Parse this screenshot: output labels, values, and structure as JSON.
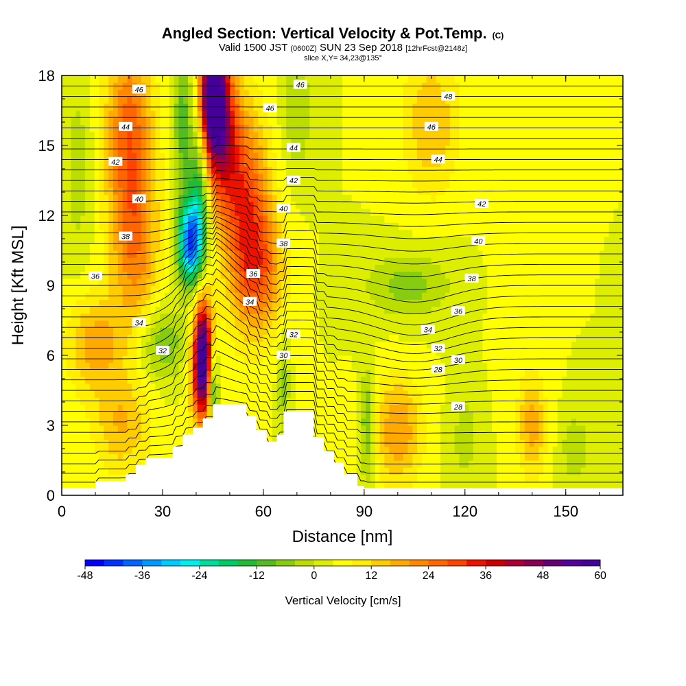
{
  "title": {
    "main": "Angled Section: Vertical Velocity & Pot.Temp.",
    "main_unit": "(C)",
    "valid_prefix": "Valid 1500 JST",
    "valid_utc": "(0600Z)",
    "valid_date": "SUN 23 Sep 2018",
    "forecast": "[12hrFcst@2148z]",
    "slice": "slice X,Y= 34,23@135°"
  },
  "chart_data": {
    "type": "heatmap",
    "xlabel": "Distance [nm]",
    "ylabel": "Height [Kft MSL]",
    "xlim": [
      0,
      167
    ],
    "ylim": [
      0,
      18
    ],
    "x_ticks": [
      0,
      30,
      60,
      90,
      120,
      150
    ],
    "y_ticks": [
      0,
      3,
      6,
      9,
      12,
      15,
      18
    ],
    "colorbar": {
      "label": "Vertical Velocity [cm/s]",
      "min": -48,
      "max": 60,
      "step": 4,
      "ticks": [
        -48,
        -36,
        -24,
        -12,
        0,
        12,
        24,
        36,
        48,
        60
      ],
      "colors": [
        "#0000ff",
        "#0033ff",
        "#0066ff",
        "#0099ff",
        "#00ccff",
        "#00eeee",
        "#00dd99",
        "#00cc66",
        "#22bb33",
        "#55bb22",
        "#88cc11",
        "#bbdd00",
        "#ddee00",
        "#ffff00",
        "#ffee00",
        "#ffcc00",
        "#ffaa00",
        "#ff8800",
        "#ff6600",
        "#ff4400",
        "#ee1100",
        "#cc0000",
        "#aa0033",
        "#880055",
        "#660077",
        "#550099",
        "#440099"
      ]
    },
    "velocity_features": [
      {
        "x": 45,
        "y": 17.2,
        "value": 55,
        "sx": 2.5,
        "sy": 1.5
      },
      {
        "x": 47,
        "y": 15.5,
        "value": 34,
        "sx": 4,
        "sy": 2.2
      },
      {
        "x": 55,
        "y": 12,
        "value": 26,
        "sx": 5,
        "sy": 3
      },
      {
        "x": 60,
        "y": 9.5,
        "value": 14,
        "sx": 5,
        "sy": 1.8
      },
      {
        "x": 42,
        "y": 6.3,
        "value": 46,
        "sx": 2,
        "sy": 1.7
      },
      {
        "x": 42,
        "y": 4.8,
        "value": 22,
        "sx": 2.5,
        "sy": 1.5
      },
      {
        "x": 38,
        "y": 10.8,
        "value": -40,
        "sx": 2.5,
        "sy": 1.2
      },
      {
        "x": 41,
        "y": 13,
        "value": -22,
        "sx": 2.2,
        "sy": 2.5
      },
      {
        "x": 36,
        "y": 16,
        "value": -14,
        "sx": 2,
        "sy": 2.5
      },
      {
        "x": 45,
        "y": 4.7,
        "value": -26,
        "sx": 1.2,
        "sy": 1.3
      },
      {
        "x": 30,
        "y": 6.5,
        "value": -12,
        "sx": 5,
        "sy": 1.1
      },
      {
        "x": 20,
        "y": 15.5,
        "value": 22,
        "sx": 5,
        "sy": 3
      },
      {
        "x": 22,
        "y": 10.5,
        "value": 16,
        "sx": 5,
        "sy": 2.5
      },
      {
        "x": 10,
        "y": 6.5,
        "value": 14,
        "sx": 6,
        "sy": 1.5
      },
      {
        "x": 18,
        "y": 3,
        "value": 12,
        "sx": 6,
        "sy": 1.5
      },
      {
        "x": 70,
        "y": 16.5,
        "value": -8,
        "sx": 3,
        "sy": 2
      },
      {
        "x": 66,
        "y": 4.8,
        "value": -10,
        "sx": 1.2,
        "sy": 1.5
      },
      {
        "x": 100,
        "y": 2.8,
        "value": 16,
        "sx": 5,
        "sy": 1.6
      },
      {
        "x": 110,
        "y": 16,
        "value": 12,
        "sx": 6,
        "sy": 2.2
      },
      {
        "x": 140,
        "y": 3,
        "value": 14,
        "sx": 3,
        "sy": 1.5
      },
      {
        "x": 103,
        "y": 9,
        "value": -10,
        "sx": 9,
        "sy": 1
      },
      {
        "x": 91,
        "y": 3,
        "value": -14,
        "sx": 1.5,
        "sy": 1.7
      },
      {
        "x": 120,
        "y": 2.5,
        "value": -6,
        "sx": 3,
        "sy": 1.5
      },
      {
        "x": 153,
        "y": 2,
        "value": -8,
        "sx": 3,
        "sy": 1
      },
      {
        "x": 5,
        "y": 14,
        "value": -6,
        "sx": 3,
        "sy": 3
      },
      {
        "x": 135,
        "y": 12,
        "value": 4,
        "sx": 4,
        "sy": 4
      }
    ],
    "terrain": [
      [
        0,
        0.3
      ],
      [
        10,
        0.6
      ],
      [
        16,
        0.6
      ],
      [
        19,
        0.9
      ],
      [
        22,
        1.3
      ],
      [
        25,
        1.6
      ],
      [
        30,
        1.6
      ],
      [
        33,
        2.1
      ],
      [
        36,
        2.6
      ],
      [
        39,
        2.9
      ],
      [
        42,
        3.3
      ],
      [
        45,
        3.9
      ],
      [
        52,
        3.9
      ],
      [
        55,
        3.4
      ],
      [
        58,
        2.8
      ],
      [
        61,
        2.3
      ],
      [
        64,
        2.6
      ],
      [
        66,
        3.6
      ],
      [
        72,
        3.6
      ],
      [
        75,
        2.5
      ],
      [
        78,
        1.9
      ],
      [
        81,
        1.4
      ],
      [
        84,
        0.9
      ],
      [
        88,
        0.4
      ],
      [
        90,
        0.3
      ],
      [
        167,
        0.3
      ]
    ],
    "contour_labels": [
      {
        "text": "46",
        "x": 23,
        "y": 17.4
      },
      {
        "text": "44",
        "x": 19,
        "y": 15.8
      },
      {
        "text": "42",
        "x": 16,
        "y": 14.3
      },
      {
        "text": "40",
        "x": 23,
        "y": 12.7
      },
      {
        "text": "38",
        "x": 19,
        "y": 11.1
      },
      {
        "text": "36",
        "x": 10,
        "y": 9.4
      },
      {
        "text": "34",
        "x": 23,
        "y": 7.4
      },
      {
        "text": "32",
        "x": 30,
        "y": 6.2
      },
      {
        "text": "46",
        "x": 71,
        "y": 17.6
      },
      {
        "text": "46",
        "x": 62,
        "y": 16.6
      },
      {
        "text": "44",
        "x": 69,
        "y": 14.9
      },
      {
        "text": "42",
        "x": 69,
        "y": 13.5
      },
      {
        "text": "40",
        "x": 66,
        "y": 12.3
      },
      {
        "text": "38",
        "x": 66,
        "y": 10.8
      },
      {
        "text": "36",
        "x": 57,
        "y": 9.5
      },
      {
        "text": "34",
        "x": 56,
        "y": 8.3
      },
      {
        "text": "32",
        "x": 69,
        "y": 6.9
      },
      {
        "text": "30",
        "x": 66,
        "y": 6.0
      },
      {
        "text": "48",
        "x": 115,
        "y": 17.1
      },
      {
        "text": "46",
        "x": 110,
        "y": 15.8
      },
      {
        "text": "44",
        "x": 112,
        "y": 14.4
      },
      {
        "text": "42",
        "x": 125,
        "y": 12.5
      },
      {
        "text": "40",
        "x": 124,
        "y": 10.9
      },
      {
        "text": "38",
        "x": 122,
        "y": 9.3
      },
      {
        "text": "36",
        "x": 118,
        "y": 7.9
      },
      {
        "text": "34",
        "x": 109,
        "y": 7.1
      },
      {
        "text": "32",
        "x": 112,
        "y": 6.3
      },
      {
        "text": "30",
        "x": 118,
        "y": 5.8
      },
      {
        "text": "28",
        "x": 112,
        "y": 5.4
      },
      {
        "text": "28",
        "x": 118,
        "y": 3.8
      }
    ]
  }
}
